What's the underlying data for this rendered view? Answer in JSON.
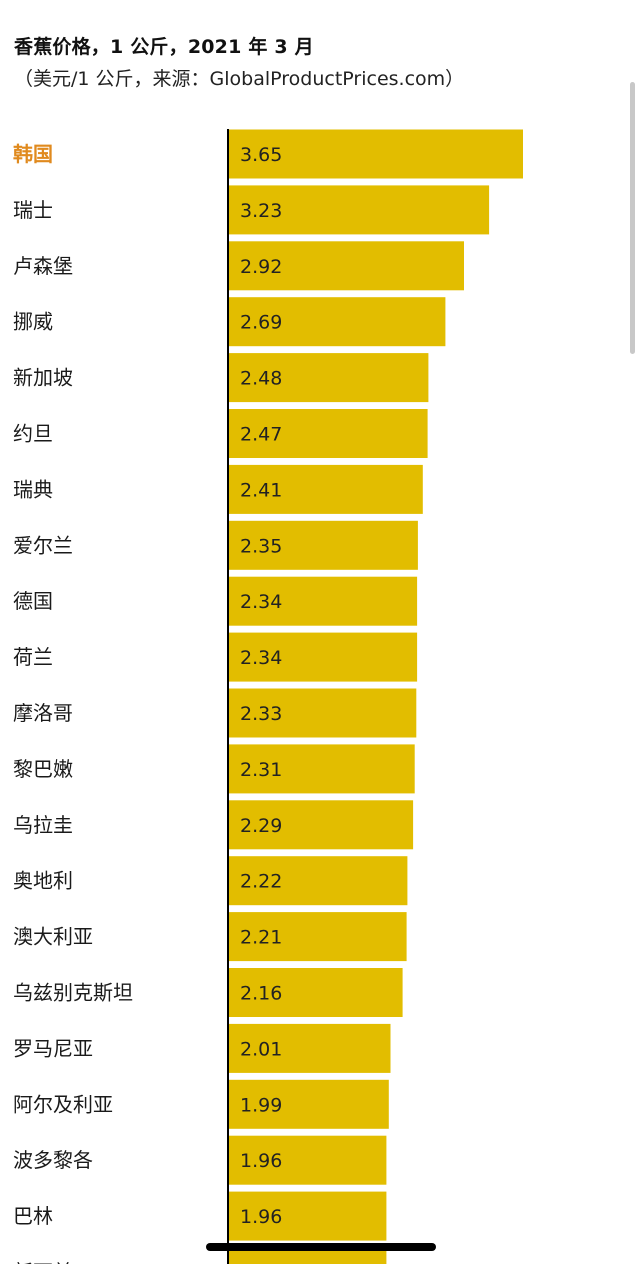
{
  "header": {
    "title": "香蕉价格，1 公斤，2021 年 3 月",
    "subtitle": "（美元/1 公斤，来源：GlobalProductPrices.com）"
  },
  "colors": {
    "bar": "#e2bd00",
    "highlight_label": "#e08a1e",
    "label": "#1a1a1a",
    "axis": "#000000"
  },
  "chart_data": {
    "type": "bar",
    "orientation": "horizontal",
    "title": "香蕉价格，1 公斤，2021 年 3 月",
    "subtitle": "（美元/1 公斤，来源：GlobalProductPrices.com）",
    "highlighted_category": "韩国",
    "categories": [
      "韩国",
      "瑞士",
      "卢森堡",
      "挪威",
      "新加坡",
      "约旦",
      "瑞典",
      "爱尔兰",
      "德国",
      "荷兰",
      "摩洛哥",
      "黎巴嫩",
      "乌拉圭",
      "奥地利",
      "澳大利亚",
      "乌兹别克斯坦",
      "罗马尼亚",
      "阿尔及利亚",
      "波多黎各",
      "巴林",
      "新西兰"
    ],
    "values": [
      3.65,
      3.23,
      2.92,
      2.69,
      2.48,
      2.47,
      2.41,
      2.35,
      2.34,
      2.34,
      2.33,
      2.31,
      2.29,
      2.22,
      2.21,
      2.16,
      2.01,
      1.99,
      1.96,
      1.96,
      1.96
    ],
    "value_labels": [
      "3.65",
      "3.23",
      "2.92",
      "2.69",
      "2.48",
      "2.47",
      "2.41",
      "2.35",
      "2.34",
      "2.34",
      "2.33",
      "2.31",
      "2.29",
      "2.22",
      "2.21",
      "2.16",
      "2.01",
      "1.99",
      "1.96",
      "1.96",
      ""
    ],
    "xlim": [
      0,
      3.65
    ],
    "grid": false,
    "legend": "none"
  }
}
